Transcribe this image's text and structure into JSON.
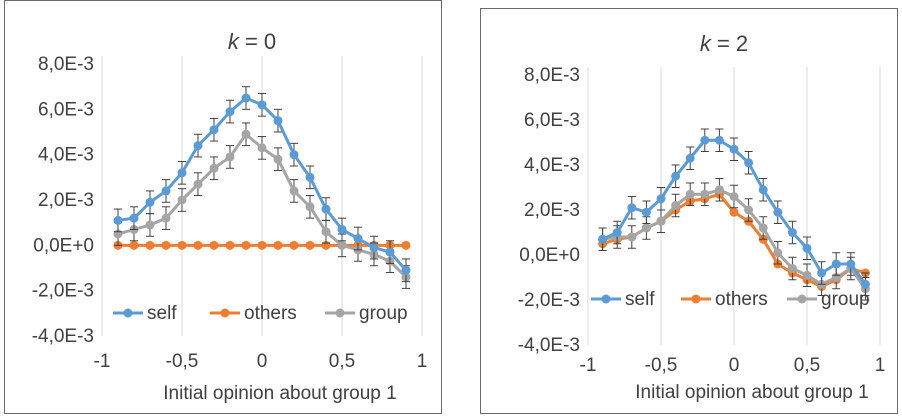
{
  "chart_data": [
    {
      "type": "line",
      "title_prefix": "k",
      "title_suffix": " = 0",
      "xlabel": "Initial opinion about group 1",
      "ylabel": "",
      "xlim": [
        -1,
        1
      ],
      "ylim": [
        -0.004,
        0.008
      ],
      "x_ticks": [
        -1,
        -0.5,
        0,
        0.5,
        1
      ],
      "x_tick_labels": [
        "-1",
        "-0,5",
        "0",
        "0,5",
        "1"
      ],
      "y_ticks": [
        -0.004,
        -0.002,
        0,
        0.002,
        0.004,
        0.006,
        0.008
      ],
      "y_tick_labels": [
        "-4,0E-3",
        "-2,0E-3",
        "0,0E+0",
        "2,0E-3",
        "4,0E-3",
        "6,0E-3",
        "8,0E-3"
      ],
      "grid": "vertical",
      "legend_position": "bottom",
      "x": [
        -0.9,
        -0.8,
        -0.7,
        -0.6,
        -0.5,
        -0.4,
        -0.3,
        -0.2,
        -0.1,
        0.0,
        0.1,
        0.2,
        0.3,
        0.4,
        0.5,
        0.6,
        0.7,
        0.8,
        0.9
      ],
      "series": [
        {
          "name": "self",
          "color": "#5b9bd5",
          "values": [
            0.0011,
            0.0012,
            0.0019,
            0.0024,
            0.0032,
            0.0044,
            0.0051,
            0.0059,
            0.0065,
            0.0062,
            0.0055,
            0.004,
            0.003,
            0.0016,
            0.0007,
            0.0003,
            -0.0001,
            -0.0003,
            -0.0011
          ],
          "errors": [
            0.0005,
            0.0005,
            0.0005,
            0.0005,
            0.0005,
            0.0005,
            0.0005,
            0.0005,
            0.0005,
            0.0005,
            0.0005,
            0.0005,
            0.0005,
            0.0005,
            0.0005,
            0.0005,
            0.0005,
            0.0005,
            0.0005
          ]
        },
        {
          "name": "others",
          "color": "#ed7d31",
          "values": [
            0,
            0,
            0,
            0,
            0,
            0,
            0,
            0,
            0,
            0,
            0,
            0,
            0,
            0,
            0,
            0,
            0,
            0,
            0
          ],
          "errors": null
        },
        {
          "name": "group",
          "color": "#a5a5a5",
          "values": [
            0.0005,
            0.0007,
            0.0009,
            0.0012,
            0.002,
            0.0027,
            0.0034,
            0.0039,
            0.0049,
            0.0043,
            0.0038,
            0.0024,
            0.0017,
            0.0006,
            0.0,
            -0.0002,
            -0.0004,
            -0.0007,
            -0.0014
          ],
          "errors": [
            0.0005,
            0.0005,
            0.0005,
            0.0005,
            0.0005,
            0.0005,
            0.0005,
            0.0005,
            0.0005,
            0.0005,
            0.0005,
            0.0005,
            0.0005,
            0.0005,
            0.0005,
            0.0005,
            0.0005,
            0.0005,
            0.0005
          ]
        }
      ]
    },
    {
      "type": "line",
      "title_prefix": "k",
      "title_suffix": " = 2",
      "xlabel": "Initial opinion about group 1",
      "ylabel": "",
      "xlim": [
        -1,
        1
      ],
      "ylim": [
        -0.004,
        0.008
      ],
      "x_ticks": [
        -1,
        -0.5,
        0,
        0.5,
        1
      ],
      "x_tick_labels": [
        "-1",
        "-0,5",
        "0",
        "0,5",
        "1"
      ],
      "y_ticks": [
        -0.004,
        -0.002,
        0,
        0.002,
        0.004,
        0.006,
        0.008
      ],
      "y_tick_labels": [
        "-4,0E-3",
        "-2,0E-3",
        "0,0E+0",
        "2,0E-3",
        "4,0E-3",
        "6,0E-3",
        "8,0E-3"
      ],
      "grid": "vertical",
      "legend_position": "bottom",
      "x": [
        -0.9,
        -0.8,
        -0.7,
        -0.6,
        -0.5,
        -0.4,
        -0.3,
        -0.2,
        -0.1,
        0.0,
        0.1,
        0.2,
        0.3,
        0.4,
        0.5,
        0.6,
        0.7,
        0.8,
        0.9
      ],
      "series": [
        {
          "name": "self",
          "color": "#5b9bd5",
          "values": [
            0.0007,
            0.001,
            0.0021,
            0.0019,
            0.0025,
            0.0035,
            0.0043,
            0.0051,
            0.0051,
            0.0047,
            0.0041,
            0.0029,
            0.0019,
            0.001,
            0.0003,
            -0.0008,
            -0.0004,
            -0.0004,
            -0.0013
          ],
          "errors": [
            0.0005,
            0.0005,
            0.0005,
            0.0005,
            0.0005,
            0.0005,
            0.0005,
            0.0005,
            0.0005,
            0.0005,
            0.0005,
            0.0005,
            0.0005,
            0.0005,
            0.0005,
            0.0005,
            0.0005,
            0.0005,
            0.0005
          ]
        },
        {
          "name": "others",
          "color": "#ed7d31",
          "values": [
            0.0005,
            0.0007,
            0.0008,
            0.0012,
            0.0015,
            0.002,
            0.0024,
            0.0025,
            0.0027,
            0.0019,
            0.0015,
            0.0007,
            -0.0004,
            -0.0008,
            -0.0011,
            -0.0014,
            -0.0011,
            -0.0006,
            -0.0008
          ],
          "errors": null
        },
        {
          "name": "group",
          "color": "#a5a5a5",
          "values": [
            0.0007,
            0.0008,
            0.0008,
            0.0012,
            0.0015,
            0.0022,
            0.0027,
            0.0027,
            0.0029,
            0.0026,
            0.002,
            0.0012,
            0.0001,
            -0.0006,
            -0.0009,
            -0.0013,
            -0.001,
            -0.0006,
            -0.0015
          ],
          "errors": [
            0.0005,
            0.0005,
            0.0005,
            0.0005,
            0.0005,
            0.0005,
            0.0005,
            0.0005,
            0.0005,
            0.0005,
            0.0005,
            0.0005,
            0.0005,
            0.0005,
            0.0005,
            0.0005,
            0.0005,
            0.0005,
            0.0005
          ]
        }
      ]
    }
  ]
}
